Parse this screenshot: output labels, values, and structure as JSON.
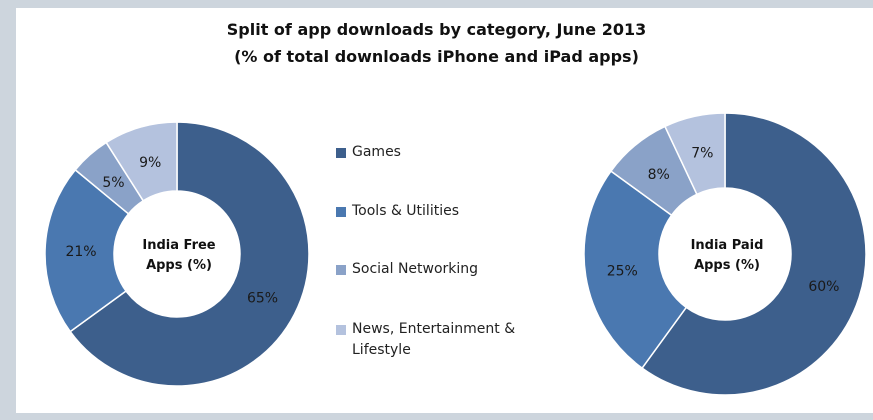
{
  "title_line1": "Split of app downloads by category, June 2013",
  "title_line2": "(% of total downloads iPhone and iPad apps)",
  "legend": [
    {
      "label": "Games",
      "color": "#3d5f8c"
    },
    {
      "label": "Tools & Utilities",
      "color": "#4a78b0"
    },
    {
      "label": "Social Networking",
      "color": "#8aa2c8"
    },
    {
      "label": "News, Entertainment &\nLifestyle",
      "color": "#b4c2de"
    }
  ],
  "chart_data": [
    {
      "type": "pie",
      "variant": "donut",
      "center_label": [
        "India Free",
        "Apps (%)"
      ],
      "categories": [
        "Games",
        "Tools & Utilities",
        "Social Networking",
        "News, Entertainment & Lifestyle"
      ],
      "values": [
        65,
        21,
        5,
        9
      ],
      "labels": [
        "65%",
        "21%",
        "5%",
        "9%"
      ],
      "colors": [
        "#3d5f8c",
        "#4a78b0",
        "#8aa2c8",
        "#b4c2de"
      ],
      "start": "12 o'clock",
      "direction": "clockwise"
    },
    {
      "type": "pie",
      "variant": "donut",
      "center_label": [
        "India Paid",
        "Apps (%)"
      ],
      "categories": [
        "Games",
        "Tools & Utilities",
        "Social Networking",
        "News, Entertainment & Lifestyle"
      ],
      "values": [
        60,
        25,
        8,
        7
      ],
      "labels": [
        "60%",
        "25%",
        "8%",
        "7%"
      ],
      "colors": [
        "#3d5f8c",
        "#4a78b0",
        "#8aa2c8",
        "#b4c2de"
      ],
      "start": "12 o'clock",
      "direction": "clockwise"
    }
  ]
}
